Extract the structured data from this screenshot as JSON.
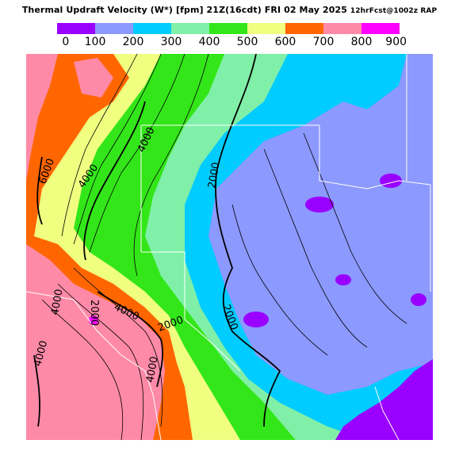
{
  "header": {
    "title_main": "Thermal Updraft Velocity (W*) [fpm] 21Z(16cdt) FRI 02 May 2025",
    "title_model": "12hrFcst@1002z RAP"
  },
  "legend": {
    "ticks": [
      "0",
      "100",
      "200",
      "300",
      "400",
      "500",
      "600",
      "700",
      "800",
      "900"
    ],
    "colors": [
      "#9a00ff",
      "#8c99ff",
      "#00ccff",
      "#80f0a8",
      "#33e619",
      "#f0ff80",
      "#ff6600",
      "#ff8aa8",
      "#ff00ff"
    ]
  },
  "contours": {
    "labels": [
      "6000",
      "4000",
      "4000",
      "2000",
      "2000",
      "2000",
      "4000",
      "2000",
      "4000",
      "4000",
      "4000"
    ]
  }
}
